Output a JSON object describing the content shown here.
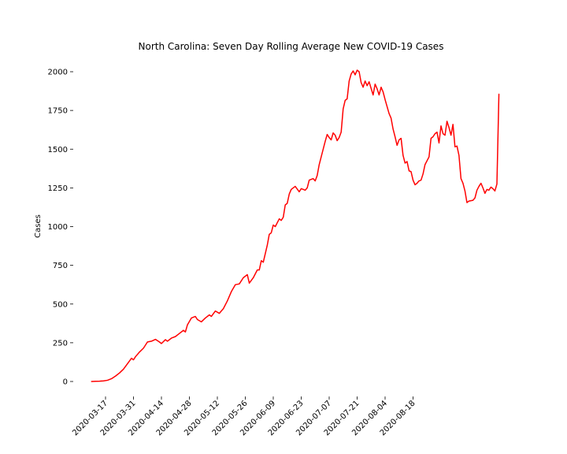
{
  "chart_data": {
    "type": "line",
    "title": "North Carolina: Seven Day Rolling Average New COVID-19 Cases",
    "xlabel": "",
    "ylabel": "Cases",
    "ylim": [
      -100,
      2080
    ],
    "yticks": [
      0,
      250,
      500,
      750,
      1000,
      1250,
      1500,
      1750,
      2000
    ],
    "ytick_labels": [
      "0",
      "250",
      "500",
      "750",
      "1000",
      "1250",
      "1500",
      "1750",
      "2000"
    ],
    "xtick_dates": [
      "2020-03-17",
      "2020-03-31",
      "2020-04-14",
      "2020-04-28",
      "2020-05-12",
      "2020-05-26",
      "2020-06-09",
      "2020-06-23",
      "2020-07-07",
      "2020-07-21",
      "2020-08-04",
      "2020-08-18"
    ],
    "grid": false,
    "series": [
      {
        "color": "#ff0000",
        "points": [
          [
            "2020-03-10",
            0
          ],
          [
            "2020-03-12",
            1
          ],
          [
            "2020-03-14",
            2
          ],
          [
            "2020-03-16",
            4
          ],
          [
            "2020-03-18",
            8
          ],
          [
            "2020-03-20",
            18
          ],
          [
            "2020-03-22",
            35
          ],
          [
            "2020-03-24",
            55
          ],
          [
            "2020-03-26",
            80
          ],
          [
            "2020-03-28",
            115
          ],
          [
            "2020-03-30",
            150
          ],
          [
            "2020-03-31",
            140
          ],
          [
            "2020-04-01",
            160
          ],
          [
            "2020-04-03",
            190
          ],
          [
            "2020-04-05",
            215
          ],
          [
            "2020-04-07",
            255
          ],
          [
            "2020-04-09",
            260
          ],
          [
            "2020-04-11",
            272
          ],
          [
            "2020-04-13",
            255
          ],
          [
            "2020-04-14",
            245
          ],
          [
            "2020-04-16",
            270
          ],
          [
            "2020-04-17",
            260
          ],
          [
            "2020-04-19",
            280
          ],
          [
            "2020-04-21",
            290
          ],
          [
            "2020-04-23",
            310
          ],
          [
            "2020-04-25",
            330
          ],
          [
            "2020-04-26",
            320
          ],
          [
            "2020-04-27",
            365
          ],
          [
            "2020-04-29",
            410
          ],
          [
            "2020-05-01",
            420
          ],
          [
            "2020-05-02",
            400
          ],
          [
            "2020-05-04",
            385
          ],
          [
            "2020-05-06",
            410
          ],
          [
            "2020-05-08",
            430
          ],
          [
            "2020-05-09",
            420
          ],
          [
            "2020-05-11",
            455
          ],
          [
            "2020-05-13",
            440
          ],
          [
            "2020-05-15",
            470
          ],
          [
            "2020-05-17",
            520
          ],
          [
            "2020-05-19",
            580
          ],
          [
            "2020-05-21",
            625
          ],
          [
            "2020-05-23",
            630
          ],
          [
            "2020-05-25",
            670
          ],
          [
            "2020-05-27",
            690
          ],
          [
            "2020-05-28",
            635
          ],
          [
            "2020-05-30",
            670
          ],
          [
            "2020-06-01",
            720
          ],
          [
            "2020-06-02",
            720
          ],
          [
            "2020-06-03",
            780
          ],
          [
            "2020-06-04",
            770
          ],
          [
            "2020-06-06",
            880
          ],
          [
            "2020-06-07",
            950
          ],
          [
            "2020-06-08",
            960
          ],
          [
            "2020-06-09",
            1010
          ],
          [
            "2020-06-10",
            1000
          ],
          [
            "2020-06-12",
            1050
          ],
          [
            "2020-06-13",
            1040
          ],
          [
            "2020-06-14",
            1060
          ],
          [
            "2020-06-15",
            1140
          ],
          [
            "2020-06-16",
            1150
          ],
          [
            "2020-06-17",
            1210
          ],
          [
            "2020-06-18",
            1240
          ],
          [
            "2020-06-20",
            1260
          ],
          [
            "2020-06-22",
            1225
          ],
          [
            "2020-06-23",
            1245
          ],
          [
            "2020-06-25",
            1235
          ],
          [
            "2020-06-26",
            1250
          ],
          [
            "2020-06-27",
            1300
          ],
          [
            "2020-06-29",
            1310
          ],
          [
            "2020-06-30",
            1295
          ],
          [
            "2020-07-01",
            1330
          ],
          [
            "2020-07-02",
            1400
          ],
          [
            "2020-07-04",
            1500
          ],
          [
            "2020-07-05",
            1550
          ],
          [
            "2020-07-06",
            1595
          ],
          [
            "2020-07-07",
            1575
          ],
          [
            "2020-07-08",
            1560
          ],
          [
            "2020-07-09",
            1605
          ],
          [
            "2020-07-10",
            1590
          ],
          [
            "2020-07-11",
            1555
          ],
          [
            "2020-07-12",
            1575
          ],
          [
            "2020-07-13",
            1610
          ],
          [
            "2020-07-14",
            1760
          ],
          [
            "2020-07-15",
            1815
          ],
          [
            "2020-07-16",
            1825
          ],
          [
            "2020-07-17",
            1940
          ],
          [
            "2020-07-18",
            1985
          ],
          [
            "2020-07-19",
            2005
          ],
          [
            "2020-07-20",
            1980
          ],
          [
            "2020-07-21",
            2010
          ],
          [
            "2020-07-22",
            2000
          ],
          [
            "2020-07-23",
            1930
          ],
          [
            "2020-07-24",
            1900
          ],
          [
            "2020-07-25",
            1940
          ],
          [
            "2020-07-26",
            1910
          ],
          [
            "2020-07-27",
            1935
          ],
          [
            "2020-07-29",
            1850
          ],
          [
            "2020-07-30",
            1920
          ],
          [
            "2020-07-31",
            1890
          ],
          [
            "2020-08-01",
            1850
          ],
          [
            "2020-08-02",
            1900
          ],
          [
            "2020-08-03",
            1870
          ],
          [
            "2020-08-04",
            1820
          ],
          [
            "2020-08-06",
            1730
          ],
          [
            "2020-08-07",
            1700
          ],
          [
            "2020-08-08",
            1630
          ],
          [
            "2020-08-09",
            1580
          ],
          [
            "2020-08-10",
            1525
          ],
          [
            "2020-08-11",
            1560
          ],
          [
            "2020-08-12",
            1570
          ],
          [
            "2020-08-13",
            1460
          ],
          [
            "2020-08-14",
            1410
          ],
          [
            "2020-08-15",
            1420
          ],
          [
            "2020-08-16",
            1360
          ],
          [
            "2020-08-17",
            1355
          ],
          [
            "2020-08-18",
            1300
          ],
          [
            "2020-08-19",
            1270
          ],
          [
            "2020-08-20",
            1280
          ],
          [
            "2020-08-21",
            1295
          ],
          [
            "2020-08-22",
            1300
          ],
          [
            "2020-08-23",
            1340
          ],
          [
            "2020-08-24",
            1400
          ],
          [
            "2020-08-26",
            1450
          ],
          [
            "2020-08-27",
            1570
          ],
          [
            "2020-08-28",
            1580
          ],
          [
            "2020-08-29",
            1600
          ],
          [
            "2020-08-30",
            1610
          ],
          [
            "2020-08-31",
            1540
          ],
          [
            "2020-09-01",
            1650
          ],
          [
            "2020-09-02",
            1600
          ],
          [
            "2020-09-03",
            1590
          ],
          [
            "2020-09-04",
            1680
          ],
          [
            "2020-09-05",
            1640
          ],
          [
            "2020-09-06",
            1590
          ],
          [
            "2020-09-07",
            1660
          ],
          [
            "2020-09-08",
            1515
          ],
          [
            "2020-09-09",
            1520
          ],
          [
            "2020-09-10",
            1460
          ],
          [
            "2020-09-11",
            1310
          ],
          [
            "2020-09-12",
            1280
          ],
          [
            "2020-09-13",
            1230
          ],
          [
            "2020-09-14",
            1155
          ],
          [
            "2020-09-15",
            1165
          ],
          [
            "2020-09-17",
            1170
          ],
          [
            "2020-09-18",
            1185
          ],
          [
            "2020-09-19",
            1235
          ],
          [
            "2020-09-20",
            1260
          ],
          [
            "2020-09-21",
            1280
          ],
          [
            "2020-09-22",
            1250
          ],
          [
            "2020-09-23",
            1215
          ],
          [
            "2020-09-24",
            1240
          ],
          [
            "2020-09-25",
            1235
          ],
          [
            "2020-09-26",
            1255
          ],
          [
            "2020-09-27",
            1245
          ],
          [
            "2020-09-28",
            1230
          ],
          [
            "2020-09-29",
            1275
          ],
          [
            "2020-09-30",
            1855
          ]
        ]
      }
    ]
  }
}
